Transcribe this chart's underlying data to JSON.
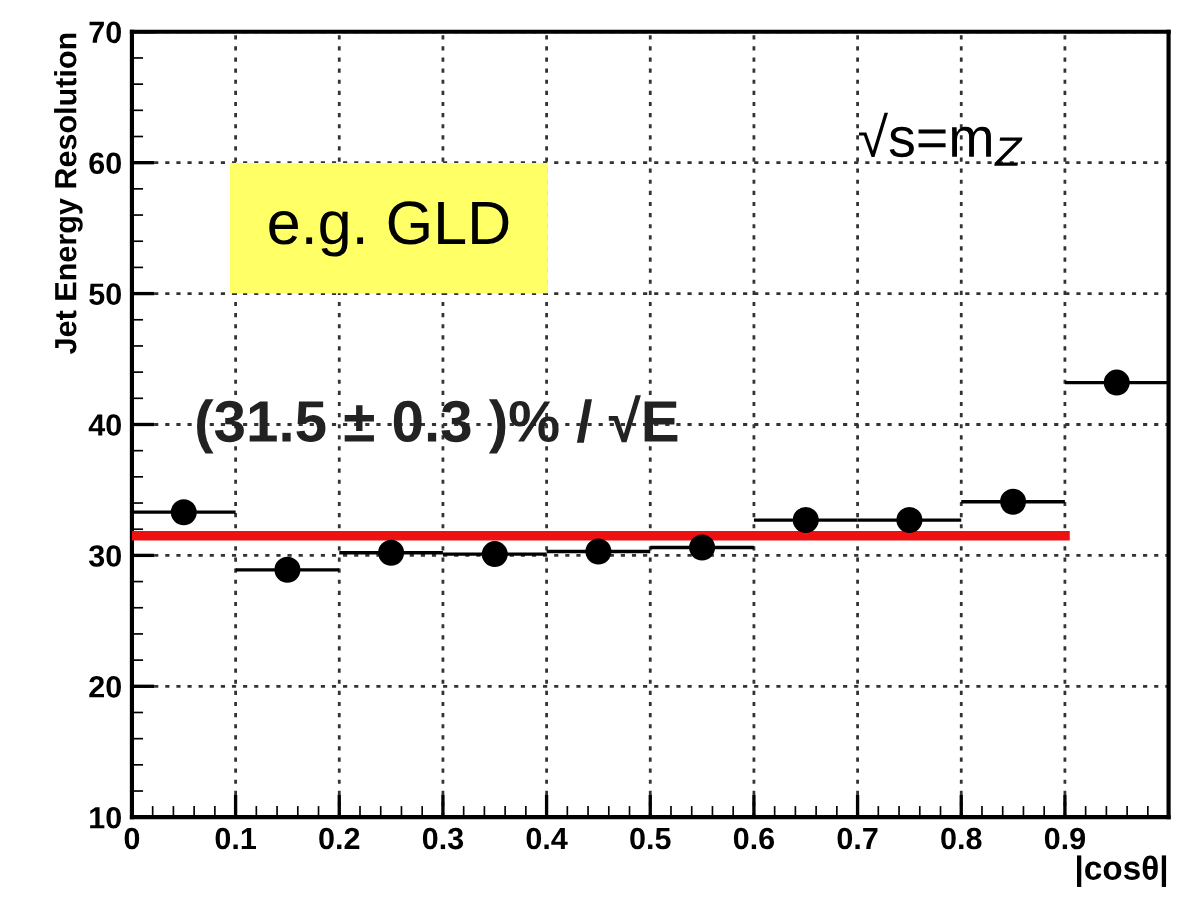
{
  "chart_data": {
    "type": "scatter",
    "xlabel": "|cosθ|",
    "ylabel": "Jet Energy Resolution",
    "xlim": [
      0,
      1.0
    ],
    "ylim": [
      10,
      70
    ],
    "xticks": [
      0,
      0.1,
      0.2,
      0.3,
      0.4,
      0.5,
      0.6,
      0.7,
      0.8,
      0.9
    ],
    "yticks": [
      10,
      20,
      30,
      40,
      50,
      60,
      70
    ],
    "grid": true,
    "annotations": [
      "e.g. GLD",
      "(31.5 ± 0.3 )% / √E",
      "√s=m$_{Z}$"
    ],
    "series": [
      {
        "marker": "circle",
        "color": "#000000",
        "x": [
          0.05,
          0.15,
          0.25,
          0.35,
          0.45,
          0.55,
          0.65,
          0.75,
          0.85,
          0.95
        ],
        "values": [
          33.3,
          28.9,
          30.2,
          30.1,
          30.3,
          30.6,
          32.7,
          32.7,
          34.1,
          43.2
        ],
        "xerrors": [
          0.05,
          0.05,
          0.05,
          0.05,
          0.05,
          0.05,
          0.05,
          0.05,
          0.05,
          0.05
        ]
      },
      {
        "type": "line",
        "color": "#ee1111",
        "x": [
          0,
          0.9
        ],
        "values": [
          31.5,
          31.5
        ]
      }
    ]
  }
}
